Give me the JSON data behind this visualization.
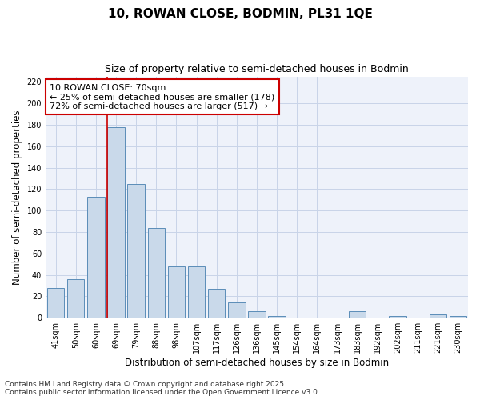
{
  "title": "10, ROWAN CLOSE, BODMIN, PL31 1QE",
  "subtitle": "Size of property relative to semi-detached houses in Bodmin",
  "xlabel": "Distribution of semi-detached houses by size in Bodmin",
  "ylabel": "Number of semi-detached properties",
  "categories": [
    "41sqm",
    "50sqm",
    "60sqm",
    "69sqm",
    "79sqm",
    "88sqm",
    "98sqm",
    "107sqm",
    "117sqm",
    "126sqm",
    "136sqm",
    "145sqm",
    "154sqm",
    "164sqm",
    "173sqm",
    "183sqm",
    "192sqm",
    "202sqm",
    "211sqm",
    "221sqm",
    "230sqm"
  ],
  "values": [
    28,
    36,
    113,
    178,
    125,
    84,
    48,
    48,
    27,
    14,
    6,
    2,
    0,
    0,
    0,
    6,
    0,
    2,
    0,
    3,
    2
  ],
  "bar_color": "#c9d9ea",
  "bar_edge_color": "#5b8db8",
  "annotation_line1": "10 ROWAN CLOSE: 70sqm",
  "annotation_line2": "← 25% of semi-detached houses are smaller (178)",
  "annotation_line3": "72% of semi-detached houses are larger (517) →",
  "vline_color": "#cc0000",
  "annotation_box_edge_color": "#cc0000",
  "ylim": [
    0,
    225
  ],
  "yticks": [
    0,
    20,
    40,
    60,
    80,
    100,
    120,
    140,
    160,
    180,
    200,
    220
  ],
  "grid_color": "#c8d4e8",
  "background_color": "#eef2fa",
  "footer_line1": "Contains HM Land Registry data © Crown copyright and database right 2025.",
  "footer_line2": "Contains public sector information licensed under the Open Government Licence v3.0.",
  "title_fontsize": 11,
  "subtitle_fontsize": 9,
  "axis_label_fontsize": 8.5,
  "tick_fontsize": 7,
  "annotation_fontsize": 8,
  "footer_fontsize": 6.5
}
